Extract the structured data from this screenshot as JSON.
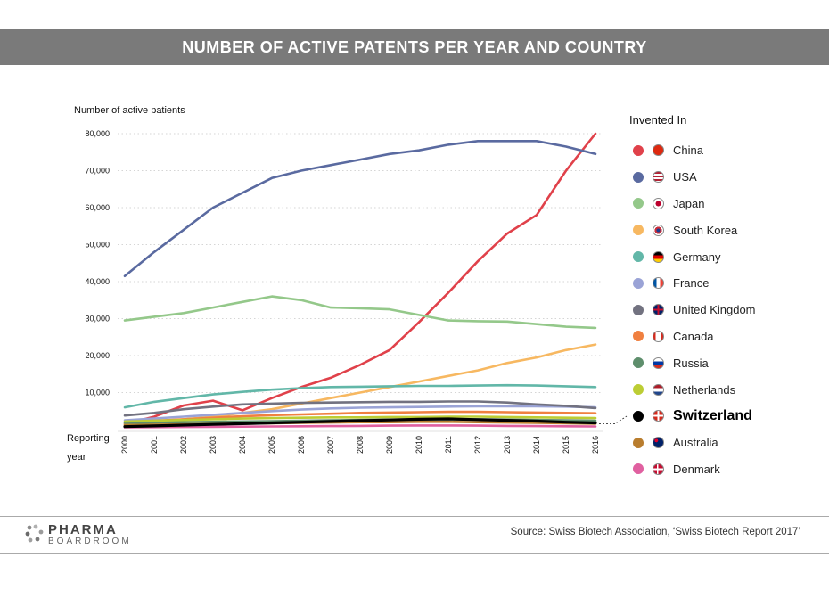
{
  "header": {
    "title": "NUMBER OF ACTIVE PATENTS PER YEAR AND COUNTRY"
  },
  "footer": {
    "logo_main": "PHARMA",
    "logo_sub": "BOARDROOM",
    "source": "Source:  Swiss Biotech Association, ‘Swiss Biotech Report 2017’"
  },
  "chart_data": {
    "type": "line",
    "ylabel": "Number of active patients",
    "xlabel_line1": "Reporting",
    "xlabel_line2": "year",
    "legend_title": "Invented In",
    "ylim": [
      0,
      80000
    ],
    "y_ticks": [
      {
        "value": 10000,
        "label": "10,000"
      },
      {
        "value": 20000,
        "label": "20,000"
      },
      {
        "value": 30000,
        "label": "30,000"
      },
      {
        "value": 40000,
        "label": "40,000"
      },
      {
        "value": 50000,
        "label": "50,000"
      },
      {
        "value": 60000,
        "label": "60,000"
      },
      {
        "value": 70000,
        "label": "70,000"
      },
      {
        "value": 80000,
        "label": "80,000"
      }
    ],
    "x": [
      "2000",
      "2001",
      "2002",
      "2003",
      "2004",
      "2005",
      "2006",
      "2007",
      "2008",
      "2009",
      "2010",
      "2011",
      "2012",
      "2013",
      "2014",
      "2015",
      "2016"
    ],
    "grid": true,
    "legend_position": "right",
    "series": [
      {
        "name": "China",
        "color": "#e0414a",
        "flag": "china-flag-icon",
        "values": [
          1500,
          3500,
          6500,
          7800,
          5200,
          8500,
          11500,
          14000,
          17500,
          21500,
          29000,
          37000,
          45500,
          53000,
          58000,
          70000,
          80000
        ]
      },
      {
        "name": "USA",
        "color": "#5a6aa0",
        "flag": "usa-flag-icon",
        "values": [
          41500,
          48000,
          54000,
          60000,
          64000,
          68000,
          70000,
          71500,
          73000,
          74500,
          75500,
          77000,
          78000,
          78000,
          78000,
          76500,
          74500
        ]
      },
      {
        "name": "Japan",
        "color": "#94c88a",
        "flag": "japan-flag-icon",
        "values": [
          29500,
          30500,
          31500,
          33000,
          34500,
          36000,
          35000,
          33000,
          32800,
          32500,
          31000,
          29500,
          29300,
          29200,
          28500,
          27800,
          27500
        ]
      },
      {
        "name": "South Korea",
        "color": "#f7b861",
        "flag": "south-korea-flag-icon",
        "values": [
          1500,
          2000,
          2800,
          3500,
          4500,
          5500,
          7000,
          8500,
          10000,
          11500,
          13000,
          14500,
          16000,
          18000,
          19500,
          21500,
          23000
        ]
      },
      {
        "name": "Germany",
        "color": "#62b7a8",
        "flag": "germany-flag-icon",
        "values": [
          6000,
          7500,
          8500,
          9500,
          10200,
          10800,
          11200,
          11500,
          11600,
          11700,
          11800,
          11800,
          11900,
          12000,
          11900,
          11700,
          11500
        ]
      },
      {
        "name": "France",
        "color": "#9aa3d6",
        "flag": "france-flag-icon",
        "values": [
          2500,
          3000,
          3500,
          4000,
          4500,
          5000,
          5400,
          5700,
          5900,
          6000,
          6100,
          6200,
          6300,
          6300,
          6300,
          6200,
          6000
        ]
      },
      {
        "name": "United Kingdom",
        "color": "#727280",
        "flag": "uk-flag-icon",
        "values": [
          3800,
          4500,
          5500,
          6200,
          6800,
          7000,
          7200,
          7300,
          7400,
          7500,
          7500,
          7600,
          7600,
          7300,
          6800,
          6400,
          5800
        ]
      },
      {
        "name": "Canada",
        "color": "#f08040",
        "flag": "canada-flag-icon",
        "values": [
          2000,
          2400,
          2800,
          3200,
          3600,
          3900,
          4100,
          4300,
          4500,
          4600,
          4700,
          4800,
          4800,
          4700,
          4600,
          4500,
          4400
        ]
      },
      {
        "name": "Russia",
        "color": "#5e8e6c",
        "flag": "russia-flag-icon",
        "values": [
          1800,
          1900,
          2000,
          2100,
          2200,
          2300,
          2400,
          2500,
          2600,
          2700,
          2800,
          2800,
          2800,
          2700,
          2600,
          2500,
          2400
        ]
      },
      {
        "name": "Netherlands",
        "color": "#bccd34",
        "flag": "netherlands-flag-icon",
        "values": [
          2200,
          2400,
          2600,
          2800,
          3000,
          3100,
          3200,
          3300,
          3300,
          3400,
          3400,
          3500,
          3500,
          3400,
          3300,
          3200,
          3100
        ]
      },
      {
        "name": "Switzerland",
        "color": "#000000",
        "flag": "switzerland-flag-icon",
        "highlight": true,
        "values": [
          800,
          1000,
          1200,
          1400,
          1600,
          1800,
          2000,
          2200,
          2400,
          2600,
          2800,
          2900,
          2700,
          2500,
          2300,
          2000,
          1800
        ]
      },
      {
        "name": "Australia",
        "color": "#b97d2e",
        "flag": "australia-flag-icon",
        "values": [
          1200,
          1300,
          1400,
          1500,
          1600,
          1700,
          1800,
          1900,
          2000,
          2000,
          2100,
          2100,
          2000,
          1900,
          1800,
          1700,
          1600
        ]
      },
      {
        "name": "Denmark",
        "color": "#e060a0",
        "flag": "denmark-flag-icon",
        "values": [
          600,
          650,
          700,
          750,
          800,
          850,
          900,
          950,
          1000,
          1050,
          1100,
          1100,
          1050,
          1000,
          950,
          900,
          850
        ]
      }
    ]
  }
}
